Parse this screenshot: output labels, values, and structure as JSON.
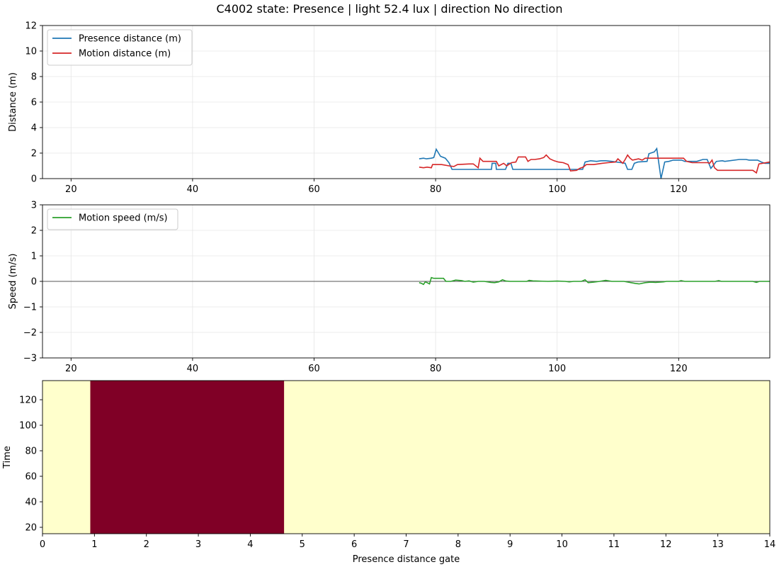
{
  "title": "C4002 state: Presence | light 52.4 lux | direction No direction",
  "chart_data": [
    {
      "type": "line",
      "ylabel": "Distance (m)",
      "xlim": [
        15.3,
        135
      ],
      "ylim": [
        0,
        12
      ],
      "xticks": [
        20,
        40,
        60,
        80,
        100,
        120
      ],
      "yticks": [
        0,
        2,
        4,
        6,
        8,
        10,
        12
      ],
      "grid": true,
      "legend": "top-left",
      "series": [
        {
          "name": "Presence distance (m)",
          "color": "#1f77b4",
          "points": [
            [
              77.3,
              1.55
            ],
            [
              78,
              1.6
            ],
            [
              78.5,
              1.55
            ],
            [
              79.3,
              1.6
            ],
            [
              79.7,
              1.65
            ],
            [
              80.1,
              2.3
            ],
            [
              80.8,
              1.75
            ],
            [
              81.6,
              1.6
            ],
            [
              82.2,
              1.25
            ],
            [
              82.7,
              0.72
            ],
            [
              85,
              0.72
            ],
            [
              88,
              0.72
            ],
            [
              89.2,
              0.72
            ],
            [
              89.3,
              1.2
            ],
            [
              89.9,
              1.2
            ],
            [
              90,
              0.72
            ],
            [
              91.5,
              0.72
            ],
            [
              91.9,
              1.2
            ],
            [
              92.4,
              1.2
            ],
            [
              92.7,
              0.72
            ],
            [
              95,
              0.72
            ],
            [
              100,
              0.72
            ],
            [
              104.2,
              0.72
            ],
            [
              104.6,
              1.3
            ],
            [
              105.5,
              1.4
            ],
            [
              106.5,
              1.35
            ],
            [
              107.2,
              1.4
            ],
            [
              108,
              1.4
            ],
            [
              109,
              1.35
            ],
            [
              110.5,
              1.25
            ],
            [
              111.2,
              1.2
            ],
            [
              111.6,
              0.72
            ],
            [
              112.3,
              0.72
            ],
            [
              112.7,
              1.2
            ],
            [
              113.3,
              1.3
            ],
            [
              114.8,
              1.35
            ],
            [
              115.1,
              1.95
            ],
            [
              116,
              2.1
            ],
            [
              116.4,
              2.35
            ],
            [
              117.1,
              0
            ],
            [
              117.7,
              1.3
            ],
            [
              118.4,
              1.35
            ],
            [
              119.1,
              1.45
            ],
            [
              120.5,
              1.45
            ],
            [
              121,
              1.35
            ],
            [
              123,
              1.35
            ],
            [
              124,
              1.5
            ],
            [
              124.7,
              1.5
            ],
            [
              125.3,
              0.8
            ],
            [
              125.8,
              1.1
            ],
            [
              126.2,
              1.35
            ],
            [
              127.2,
              1.4
            ],
            [
              127.6,
              1.35
            ],
            [
              130,
              1.5
            ],
            [
              131.1,
              1.5
            ],
            [
              131.6,
              1.45
            ],
            [
              133,
              1.45
            ],
            [
              133.6,
              1.3
            ],
            [
              134.2,
              1.2
            ],
            [
              135,
              1.2
            ]
          ]
        },
        {
          "name": "Motion distance (m)",
          "color": "#d62728",
          "points": [
            [
              77.3,
              0.9
            ],
            [
              78,
              0.85
            ],
            [
              78.6,
              0.9
            ],
            [
              79.3,
              0.85
            ],
            [
              79.5,
              1.1
            ],
            [
              81,
              1.1
            ],
            [
              82.2,
              1.0
            ],
            [
              83,
              0.95
            ],
            [
              83.6,
              1.1
            ],
            [
              85.5,
              1.15
            ],
            [
              86.2,
              1.15
            ],
            [
              87,
              0.85
            ],
            [
              87.3,
              1.6
            ],
            [
              87.8,
              1.35
            ],
            [
              89.2,
              1.35
            ],
            [
              90,
              1.35
            ],
            [
              90.4,
              1.0
            ],
            [
              91.2,
              1.2
            ],
            [
              91.7,
              1.0
            ],
            [
              92.5,
              1.25
            ],
            [
              93.2,
              1.3
            ],
            [
              93.6,
              1.7
            ],
            [
              94.8,
              1.7
            ],
            [
              95.2,
              1.35
            ],
            [
              95.7,
              1.5
            ],
            [
              96.3,
              1.5
            ],
            [
              97.1,
              1.55
            ],
            [
              97.8,
              1.65
            ],
            [
              98.2,
              1.85
            ],
            [
              98.8,
              1.55
            ],
            [
              99.5,
              1.4
            ],
            [
              100.2,
              1.3
            ],
            [
              101,
              1.25
            ],
            [
              101.8,
              1.1
            ],
            [
              102.2,
              0.6
            ],
            [
              103.2,
              0.65
            ],
            [
              103.7,
              0.8
            ],
            [
              104.3,
              0.9
            ],
            [
              104.8,
              1.1
            ],
            [
              106,
              1.1
            ],
            [
              107.4,
              1.2
            ],
            [
              108.4,
              1.25
            ],
            [
              109.6,
              1.3
            ],
            [
              110,
              1.55
            ],
            [
              110.8,
              1.2
            ],
            [
              111.2,
              1.5
            ],
            [
              111.6,
              1.85
            ],
            [
              112,
              1.6
            ],
            [
              112.4,
              1.45
            ],
            [
              113.4,
              1.55
            ],
            [
              114,
              1.45
            ],
            [
              114.5,
              1.6
            ],
            [
              115.7,
              1.6
            ],
            [
              116.4,
              1.6
            ],
            [
              120.8,
              1.6
            ],
            [
              121.3,
              1.35
            ],
            [
              122.2,
              1.25
            ],
            [
              124.8,
              1.25
            ],
            [
              125.1,
              1.2
            ],
            [
              125.5,
              1.45
            ],
            [
              125.9,
              0.85
            ],
            [
              126.4,
              0.65
            ],
            [
              129,
              0.65
            ],
            [
              131.6,
              0.65
            ],
            [
              132.2,
              0.65
            ],
            [
              132.8,
              0.45
            ],
            [
              133.2,
              1.15
            ],
            [
              135,
              1.3
            ]
          ]
        }
      ]
    },
    {
      "type": "line",
      "ylabel": "Speed (m/s)",
      "xlim": [
        15.3,
        135
      ],
      "ylim": [
        -3,
        3
      ],
      "xticks": [
        20,
        40,
        60,
        80,
        100,
        120
      ],
      "yticks": [
        -3,
        -2,
        -1,
        0,
        1,
        2,
        3
      ],
      "grid": true,
      "zero_line": true,
      "legend": "top-left",
      "series": [
        {
          "name": "Motion speed (m/s)",
          "color": "#2ca02c",
          "points": [
            [
              77.3,
              -0.05
            ],
            [
              77.7,
              -0.08
            ],
            [
              78,
              -0.12
            ],
            [
              78.3,
              -0.02
            ],
            [
              78.6,
              -0.05
            ],
            [
              79,
              -0.1
            ],
            [
              79.3,
              0.15
            ],
            [
              79.7,
              0.12
            ],
            [
              80.3,
              0.12
            ],
            [
              81.3,
              0.12
            ],
            [
              81.7,
              0.0
            ],
            [
              82.5,
              0.0
            ],
            [
              83.3,
              0.05
            ],
            [
              84.3,
              0.03
            ],
            [
              84.8,
              0.0
            ],
            [
              85.5,
              0.02
            ],
            [
              86.2,
              -0.03
            ],
            [
              87,
              0.0
            ],
            [
              88,
              0.0
            ],
            [
              89.1,
              -0.04
            ],
            [
              89.7,
              -0.05
            ],
            [
              90.4,
              -0.02
            ],
            [
              91,
              0.06
            ],
            [
              91.6,
              0.01
            ],
            [
              92.3,
              0.0
            ],
            [
              95,
              0.0
            ],
            [
              95.4,
              0.04
            ],
            [
              96,
              0.02
            ],
            [
              98.5,
              0.0
            ],
            [
              100,
              0.01
            ],
            [
              101.3,
              0.0
            ],
            [
              102,
              -0.02
            ],
            [
              102.7,
              0.0
            ],
            [
              104,
              0.0
            ],
            [
              104.6,
              0.06
            ],
            [
              105.1,
              -0.05
            ],
            [
              106,
              -0.03
            ],
            [
              107,
              0.0
            ],
            [
              108,
              0.04
            ],
            [
              109,
              0.0
            ],
            [
              111,
              0.0
            ],
            [
              111.7,
              -0.03
            ],
            [
              112.9,
              -0.08
            ],
            [
              113.5,
              -0.1
            ],
            [
              114.5,
              -0.05
            ],
            [
              115.4,
              -0.03
            ],
            [
              116.2,
              -0.04
            ],
            [
              117.5,
              -0.02
            ],
            [
              118,
              0.0
            ],
            [
              120,
              0.0
            ],
            [
              120.4,
              0.03
            ],
            [
              121,
              0.0
            ],
            [
              126,
              0.0
            ],
            [
              126.6,
              0.03
            ],
            [
              127,
              0.0
            ],
            [
              131.6,
              0.0
            ],
            [
              132.2,
              0.0
            ],
            [
              132.8,
              -0.04
            ],
            [
              133.3,
              0.0
            ],
            [
              135,
              0.0
            ]
          ]
        }
      ]
    },
    {
      "type": "heatmap",
      "xlabel": "Presence distance gate",
      "ylabel": "Time",
      "xlim": [
        0,
        14
      ],
      "ylim": [
        15,
        135
      ],
      "xticks": [
        0,
        1,
        2,
        3,
        4,
        5,
        6,
        7,
        8,
        9,
        10,
        11,
        12,
        13,
        14
      ],
      "yticks": [
        20,
        40,
        60,
        80,
        100,
        120
      ],
      "background_color": "#ffffcc",
      "regions": [
        {
          "x0": 0.92,
          "x1": 4.65,
          "y0": 15,
          "y1": 135,
          "color": "#800026"
        }
      ]
    }
  ]
}
